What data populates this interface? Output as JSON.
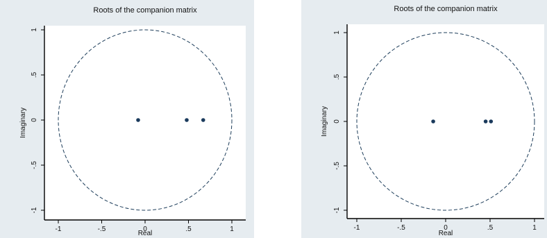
{
  "chart_data": [
    {
      "type": "scatter",
      "title": "Roots of the companion matrix",
      "xlabel": "Real",
      "ylabel": "Imaginary",
      "xlim": [
        -1,
        1
      ],
      "ylim": [
        -1,
        1
      ],
      "x_ticks": [
        -1,
        -0.5,
        0,
        0.5,
        1
      ],
      "y_ticks": [
        -1,
        -0.5,
        0,
        0.5,
        1
      ],
      "x_tick_labels": [
        "-1",
        "-.5",
        "0",
        ".5",
        "1"
      ],
      "y_tick_labels": [
        "-1",
        "-.5",
        "0",
        ".5",
        "1"
      ],
      "unit_circle": true,
      "grid": false,
      "points": [
        {
          "x": -0.08,
          "y": 0
        },
        {
          "x": 0.48,
          "y": 0
        },
        {
          "x": 0.67,
          "y": 0
        }
      ]
    },
    {
      "type": "scatter",
      "title": "Roots of the companion matrix",
      "xlabel": "Real",
      "ylabel": "Imaginary",
      "xlim": [
        -1,
        1
      ],
      "ylim": [
        -1,
        1
      ],
      "x_ticks": [
        -1,
        -0.5,
        0,
        0.5,
        1
      ],
      "y_ticks": [
        -1,
        -0.5,
        0,
        0.5,
        1
      ],
      "x_tick_labels": [
        "-1",
        "-.5",
        "0",
        ".5",
        "1"
      ],
      "y_tick_labels": [
        "-1",
        "-.5",
        "0",
        ".5",
        "1"
      ],
      "unit_circle": true,
      "grid": false,
      "points": [
        {
          "x": -0.14,
          "y": 0
        },
        {
          "x": 0.45,
          "y": 0
        },
        {
          "x": 0.51,
          "y": 0
        }
      ]
    }
  ]
}
